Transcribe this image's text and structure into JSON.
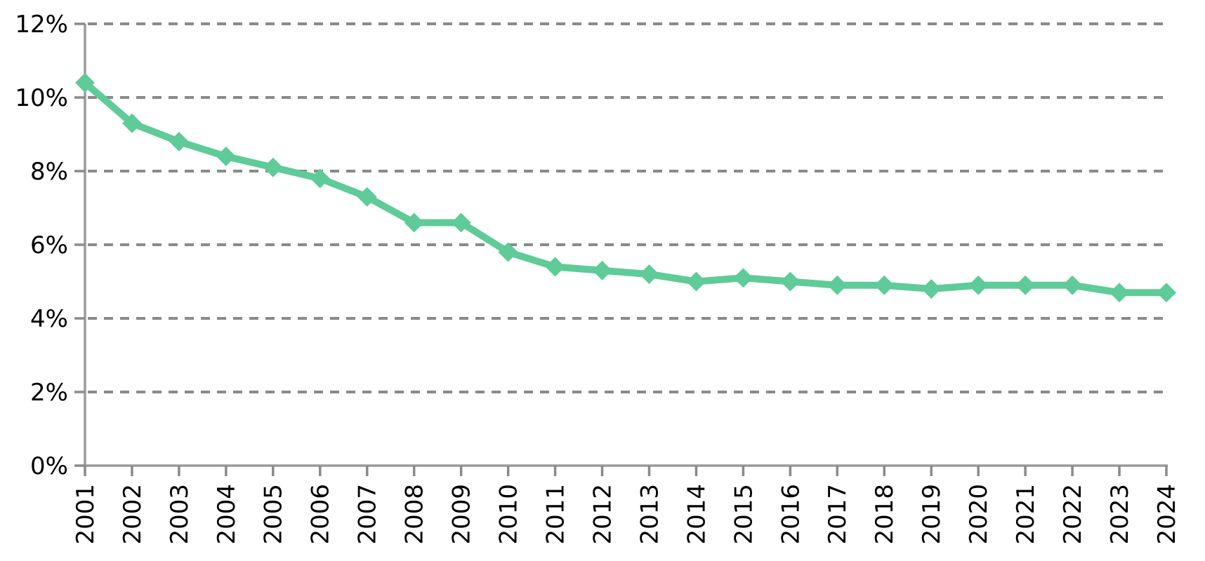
{
  "page": {
    "background": "#ffffff"
  },
  "chart_data": {
    "type": "line",
    "title": "",
    "xlabel": "",
    "ylabel": "",
    "categories": [
      "2001",
      "2002",
      "2003",
      "2004",
      "2005",
      "2006",
      "2007",
      "2008",
      "2009",
      "2010",
      "2011",
      "2012",
      "2013",
      "2014",
      "2015",
      "2016",
      "2017",
      "2018",
      "2019",
      "2020",
      "2021",
      "2022",
      "2023",
      "2024"
    ],
    "values": [
      10.4,
      9.3,
      8.8,
      8.4,
      8.1,
      7.8,
      7.3,
      6.6,
      6.6,
      5.8,
      5.4,
      5.3,
      5.2,
      5.0,
      5.1,
      5.0,
      4.9,
      4.9,
      4.8,
      4.9,
      4.9,
      4.9,
      4.7,
      4.7
    ],
    "ylim": [
      0,
      12
    ],
    "yticks": [
      0,
      2,
      4,
      6,
      8,
      10,
      12
    ],
    "ytick_labels": [
      "0%",
      "2%",
      "4%",
      "6%",
      "8%",
      "10%",
      "12%"
    ],
    "x_label_rotation": -90,
    "grid": {
      "horizontal": true,
      "vertical": false,
      "style": "dashed"
    },
    "legend_position": "none",
    "marker": "diamond",
    "colors": {
      "line": "#5FCB98",
      "gridline": "#8A8A8A",
      "axis": "#9A9A9A",
      "tick": "#8A8A8A",
      "label": "#000000",
      "background": "#ffffff"
    }
  }
}
